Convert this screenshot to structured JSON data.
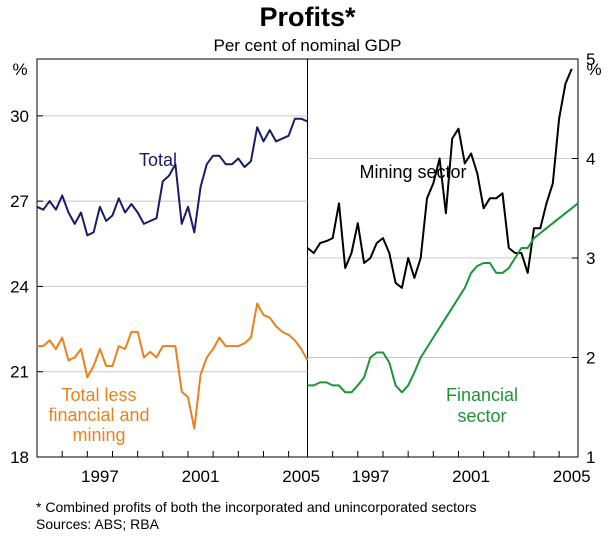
{
  "chart_data": {
    "type": "line",
    "title": "Profits*",
    "subtitle": "Per cent of nominal GDP",
    "footnote": "*   Combined profits of both the incorporated and unincorporated sectors",
    "sources": "Sources: ABS; RBA",
    "panels": [
      {
        "name": "left",
        "ylabel": "%",
        "ylim": [
          18,
          32
        ],
        "yticks": [
          "18",
          "21",
          "24",
          "27",
          "30"
        ],
        "xlim": [
          1995.0,
          2005.75
        ],
        "xticks": [
          "1997",
          "2001",
          "2005"
        ],
        "series": [
          {
            "name": "Total",
            "label": "Total",
            "color": "#1b1a6b",
            "start": 1995.0,
            "step": 0.25,
            "values": [
              26.8,
              26.7,
              27.0,
              26.7,
              27.2,
              26.6,
              26.2,
              26.6,
              25.8,
              25.9,
              26.8,
              26.3,
              26.5,
              27.1,
              26.6,
              26.9,
              26.6,
              26.2,
              26.3,
              26.4,
              27.7,
              27.9,
              28.3,
              26.2,
              26.8,
              25.9,
              27.5,
              28.3,
              28.6,
              28.6,
              28.3,
              28.3,
              28.5,
              28.2,
              28.4,
              29.6,
              29.1,
              29.5,
              29.1,
              29.2,
              29.3,
              29.9,
              29.9,
              29.8
            ]
          },
          {
            "name": "Total less financial and mining",
            "label": [
              "Total less",
              "financial and",
              "mining"
            ],
            "color": "#e8821e",
            "start": 1995.0,
            "step": 0.25,
            "values": [
              21.9,
              21.9,
              22.1,
              21.8,
              22.2,
              21.4,
              21.5,
              21.8,
              20.8,
              21.2,
              21.8,
              21.2,
              21.2,
              21.9,
              21.8,
              22.4,
              22.4,
              21.5,
              21.7,
              21.5,
              21.9,
              21.9,
              21.9,
              20.3,
              20.1,
              19.0,
              20.9,
              21.5,
              21.8,
              22.2,
              21.9,
              21.9,
              21.9,
              22.0,
              22.2,
              23.4,
              23.0,
              22.9,
              22.6,
              22.4,
              22.3,
              22.1,
              21.8,
              21.4
            ]
          }
        ]
      },
      {
        "name": "right",
        "ylabel": "%",
        "ylim": [
          1,
          5
        ],
        "yticks": [
          "1",
          "2",
          "3",
          "4",
          "5"
        ],
        "xlim": [
          1995.0,
          2005.75
        ],
        "xticks": [
          "1997",
          "2001",
          "2005"
        ],
        "series": [
          {
            "name": "Mining sector",
            "label": "Mining sector",
            "color": "#000000",
            "start": 1995.0,
            "step": 0.25,
            "values": [
              3.1,
              3.05,
              3.15,
              3.17,
              3.2,
              3.55,
              2.9,
              3.05,
              3.35,
              2.95,
              3.0,
              3.15,
              3.2,
              3.05,
              2.75,
              2.7,
              3.0,
              2.8,
              3.0,
              3.6,
              3.75,
              4.0,
              3.45,
              4.2,
              4.3,
              3.95,
              4.05,
              3.85,
              3.5,
              3.6,
              3.6,
              3.65,
              3.1,
              3.05,
              3.05,
              2.85,
              3.3,
              3.3,
              3.55,
              3.75,
              4.4,
              4.75,
              4.9
            ]
          },
          {
            "name": "Financial sector",
            "label": [
              "Financial",
              "sector"
            ],
            "color": "#1a9637",
            "start": 1995.0,
            "step": 0.25,
            "values": [
              1.72,
              1.72,
              1.75,
              1.75,
              1.72,
              1.72,
              1.65,
              1.65,
              1.72,
              1.8,
              2.0,
              2.05,
              2.05,
              1.95,
              1.72,
              1.65,
              1.72,
              1.85,
              2.0,
              2.1,
              2.2,
              2.3,
              2.4,
              2.5,
              2.6,
              2.7,
              2.85,
              2.92,
              2.95,
              2.95,
              2.85,
              2.85,
              2.9,
              3.0,
              3.1,
              3.1,
              3.2,
              3.25,
              3.3,
              3.35,
              3.4,
              3.45,
              3.5,
              3.55
            ]
          }
        ]
      }
    ]
  }
}
